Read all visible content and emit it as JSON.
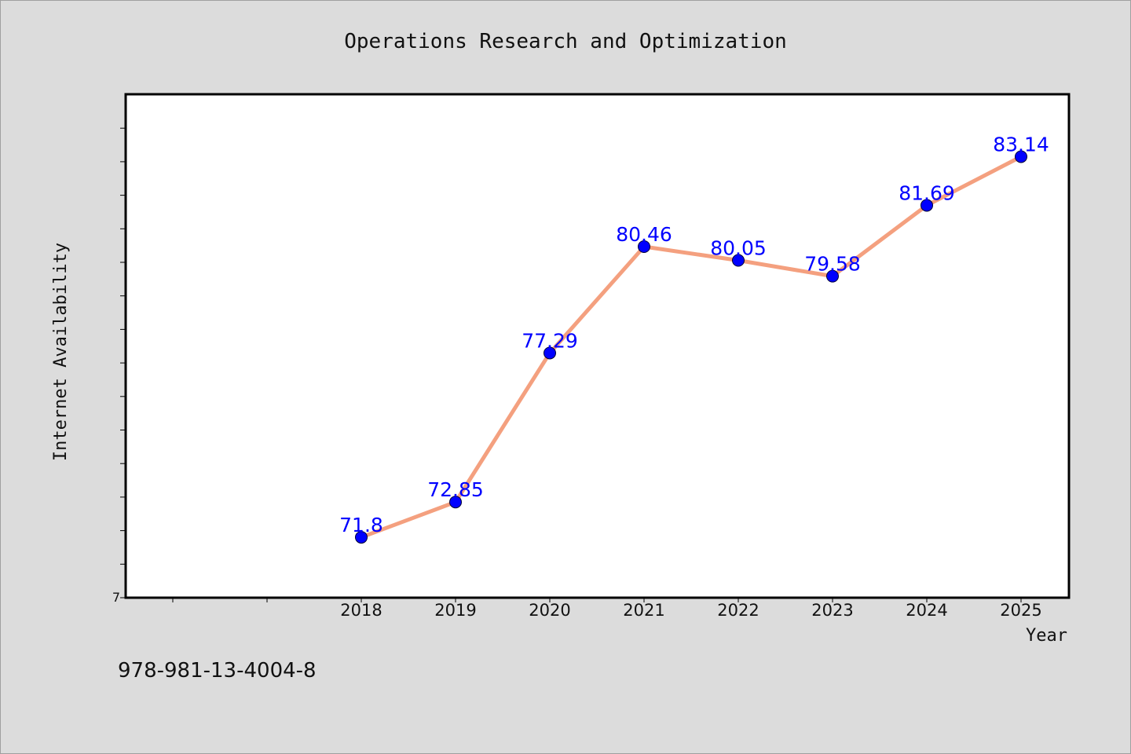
{
  "chart_data": {
    "type": "line",
    "title": "Operations Research and Optimization",
    "xlabel": "Year",
    "ylabel": "Internet Availability",
    "categories": [
      "2018",
      "2019",
      "2020",
      "2021",
      "2022",
      "2023",
      "2024",
      "2025"
    ],
    "series": [
      {
        "values": [
          71.8,
          72.85,
          77.29,
          80.46,
          80.05,
          79.58,
          81.69,
          83.14
        ],
        "labels": [
          "71.8",
          "72.85",
          "77.29",
          "80.46",
          "80.05",
          "79.58",
          "81.69",
          "83.14"
        ],
        "line_color": "#f4a07f",
        "marker_color": "#0000ff"
      }
    ],
    "ylim": [
      70,
      85
    ],
    "ytick_label": "7",
    "grid": false,
    "legend": "none"
  },
  "footer": {
    "isbn": "978-981-13-4004-8"
  }
}
